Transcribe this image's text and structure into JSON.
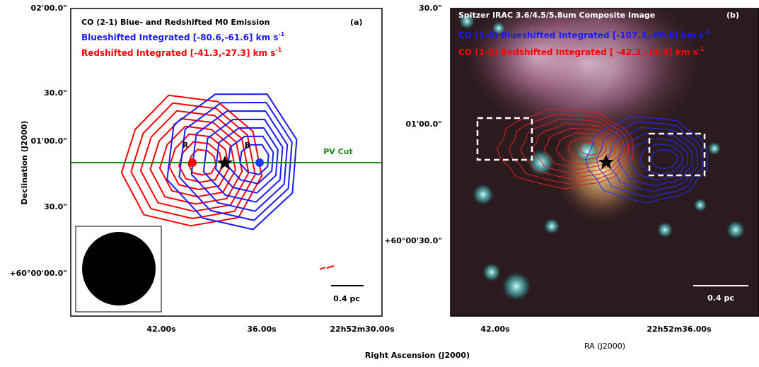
{
  "panel_a": {
    "title": "CO (2-1) Blue- and Redshifted M0 Emission",
    "tag": "(a)",
    "blue_label": "Blueshifted Integrated [-80.6,-61.6] km s",
    "blue_label_sup": "-1",
    "red_label": "Redshifted  Integrated [-41.3,-27.3] km s",
    "red_label_sup": "-1",
    "pv_label": "PV Cut",
    "marker_r": "R",
    "marker_b": "B",
    "scale_bar": "0.4 pc",
    "y_axis_label": "Declination (J2000)",
    "x_axis_label": "Right Ascension (J2000)",
    "yticks": [
      "02'00.0\"",
      "30.0\"",
      "01'00.0\"",
      "30.0\"",
      "+60°00'00.0\""
    ],
    "xticks": [
      "42.00s",
      "36.00s",
      "22h52m30.00s"
    ]
  },
  "panel_b": {
    "title": "Spitzer IRAC 3.6/4.5/5.8um Composite Image",
    "tag": "(b)",
    "blue_label": "CO (1-0) Blueshifted Integrated [-107.3,-60.6] km s",
    "blue_label_sup": "-1",
    "red_label": "CO (1-0) Redshifted  Integrated [ -42.3,-14.9] km s",
    "red_label_sup": "-1",
    "scale_bar": "0.4 pc",
    "x_axis_label": "RA (J2000)",
    "yticks": [
      "30.0\"",
      "01'00.0\"",
      "+60°00'30.0\""
    ],
    "xticks": [
      "42.00s",
      "22h52m36.00s"
    ]
  }
}
